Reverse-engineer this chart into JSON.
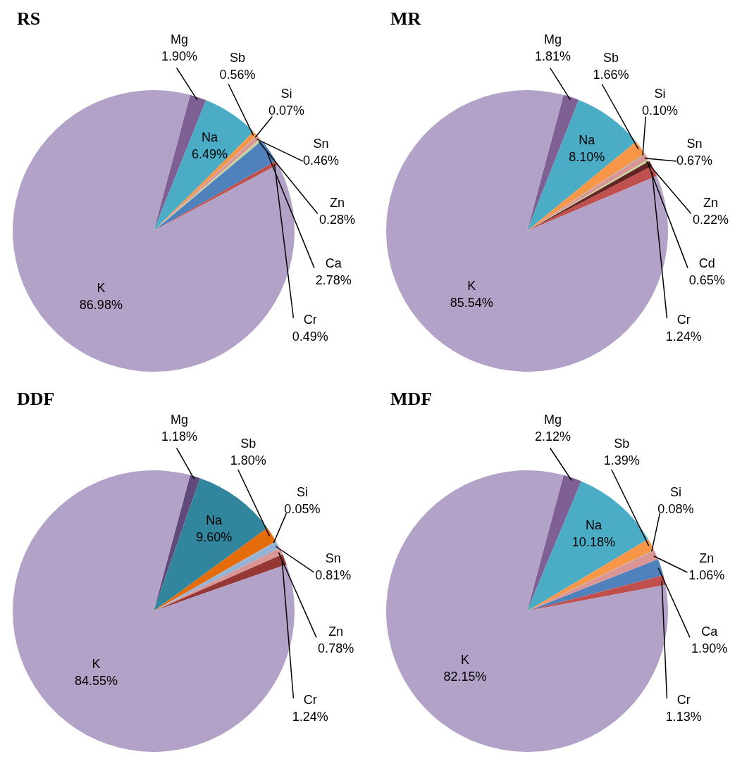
{
  "chart_data": [
    {
      "type": "pie",
      "title": "RS",
      "categories": [
        "Mg",
        "Na",
        "Sb",
        "Si",
        "Sn",
        "Zn",
        "Ca",
        "Cr",
        "K"
      ],
      "values": [
        1.9,
        6.49,
        0.56,
        0.07,
        0.46,
        0.28,
        2.78,
        0.49,
        86.98
      ],
      "colors": [
        "#7f6095",
        "#4bacc6",
        "#f79646",
        "#a6a6a6",
        "#d99694",
        "#c3d69b",
        "#4f81bd",
        "#c0504d",
        "#b3a2c7"
      ],
      "value_labels": [
        "1.90%",
        "6.49%",
        "0.56%",
        "0.07%",
        "0.46%",
        "0.28%",
        "2.78%",
        "0.49%",
        "86.98%"
      ]
    },
    {
      "type": "pie",
      "title": "MR",
      "categories": [
        "Mg",
        "Na",
        "Sb",
        "Si",
        "Sn",
        "Zn",
        "Cd",
        "Cr",
        "K"
      ],
      "values": [
        1.81,
        8.1,
        1.66,
        0.1,
        0.67,
        0.22,
        0.65,
        1.24,
        85.54
      ],
      "colors": [
        "#7f6095",
        "#4bacc6",
        "#f79646",
        "#a6a6a6",
        "#d99694",
        "#c3d69b",
        "#632523",
        "#c0504d",
        "#b3a2c7"
      ],
      "value_labels": [
        "1.81%",
        "8.10%",
        "1.66%",
        "0.10%",
        "0.67%",
        "0.22%",
        "0.65%",
        "1.24%",
        "85.54%"
      ]
    },
    {
      "type": "pie",
      "title": "DDF",
      "categories": [
        "Mg",
        "Na",
        "Sb",
        "Si",
        "Sn",
        "Zn",
        "Cr",
        "K"
      ],
      "values": [
        1.18,
        9.6,
        1.8,
        0.05,
        0.81,
        0.78,
        1.24,
        84.55
      ],
      "colors": [
        "#604a7b",
        "#31859c",
        "#e46c0a",
        "#a6a6a6",
        "#95b3d7",
        "#d99694",
        "#953735",
        "#b3a2c7"
      ],
      "value_labels": [
        "1.18%",
        "9.60%",
        "1.80%",
        "0.05%",
        "0.81%",
        "0.78%",
        "1.24%",
        "84.55%"
      ]
    },
    {
      "type": "pie",
      "title": "MDF",
      "categories": [
        "Mg",
        "Na",
        "Sb",
        "Si",
        "Zn",
        "Ca",
        "Cr",
        "K"
      ],
      "values": [
        2.12,
        10.18,
        1.39,
        0.08,
        1.06,
        1.9,
        1.13,
        82.15
      ],
      "colors": [
        "#7f6095",
        "#4bacc6",
        "#f79646",
        "#a6a6a6",
        "#d99694",
        "#4f81bd",
        "#c0504d",
        "#b3a2c7"
      ],
      "value_labels": [
        "2.12%",
        "10.18%",
        "1.39%",
        "0.08%",
        "1.06%",
        "1.90%",
        "1.13%",
        "82.15%"
      ]
    }
  ]
}
